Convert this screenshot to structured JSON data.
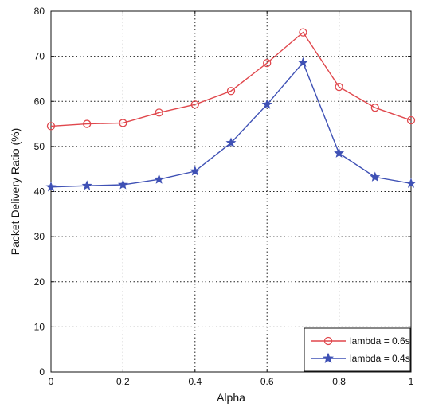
{
  "chart_data": {
    "type": "line",
    "title": "",
    "xlabel": "Alpha",
    "ylabel": "Packet Delivery Ratio (%)",
    "xlim": [
      0,
      1
    ],
    "ylim": [
      0,
      80
    ],
    "xticks": [
      0,
      0.2,
      0.4,
      0.6,
      0.8,
      1
    ],
    "xtick_labels": [
      "0",
      "0.2",
      "0.4",
      "0.6",
      "0.8",
      "1"
    ],
    "yticks": [
      0,
      10,
      20,
      30,
      40,
      50,
      60,
      70,
      80
    ],
    "ytick_labels": [
      "0",
      "10",
      "20",
      "30",
      "40",
      "50",
      "60",
      "70",
      "80"
    ],
    "grid": true,
    "grid_style": "dotted",
    "legend_position": "bottom-right",
    "x": [
      0,
      0.1,
      0.2,
      0.3,
      0.4,
      0.5,
      0.6,
      0.7,
      0.8,
      0.9,
      1.0
    ],
    "series": [
      {
        "name": "lambda = 0.6s",
        "color": "#e0474c",
        "marker": "circle",
        "values": [
          54.5,
          55.0,
          55.2,
          57.5,
          59.3,
          62.3,
          68.5,
          75.3,
          63.2,
          58.6,
          55.8
        ]
      },
      {
        "name": "lambda = 0.4s",
        "color": "#3f51b5",
        "marker": "star",
        "values": [
          41.0,
          41.3,
          41.5,
          42.7,
          44.5,
          50.8,
          59.3,
          68.6,
          48.5,
          43.2,
          41.8
        ]
      }
    ]
  }
}
